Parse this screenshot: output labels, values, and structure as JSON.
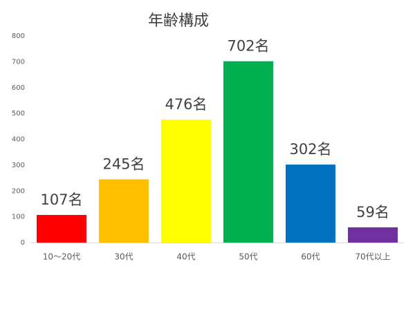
{
  "chart_data": {
    "type": "bar",
    "title": "年齢構成",
    "categories": [
      "10～20代",
      "30代",
      "40代",
      "50代",
      "60代",
      "70代以上"
    ],
    "values": [
      107,
      245,
      476,
      702,
      302,
      59
    ],
    "value_labels": [
      "107名",
      "245名",
      "476名",
      "702名",
      "302名",
      "59名"
    ],
    "colors": [
      "#ff0000",
      "#ffc000",
      "#ffff00",
      "#00b050",
      "#0070c0",
      "#7030a0"
    ],
    "ylim": [
      0,
      800
    ],
    "yticks": [
      0,
      100,
      200,
      300,
      400,
      500,
      600,
      700,
      800
    ],
    "grid": false
  }
}
